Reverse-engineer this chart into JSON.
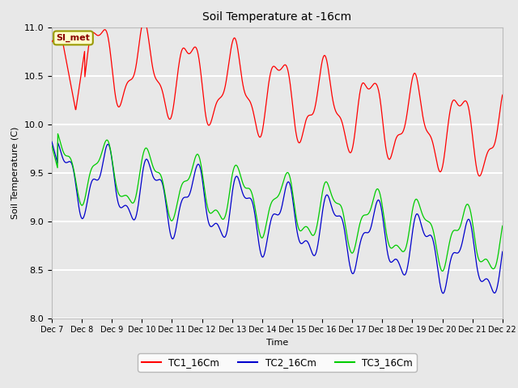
{
  "title": "Soil Temperature at -16cm",
  "xlabel": "Time",
  "ylabel": "Soil Temperature (C)",
  "ylim": [
    8.0,
    11.0
  ],
  "background_color": "#e8e8e8",
  "plot_bg_color": "#e8e8e8",
  "grid_color": "white",
  "annotation_text": "SI_met",
  "annotation_bg": "#ffffcc",
  "annotation_border": "#999900",
  "tick_labels": [
    "Dec 7",
    "Dec 8",
    "Dec 9",
    "Dec 10",
    "Dec 11",
    "Dec 12",
    "Dec 13",
    "Dec 14",
    "Dec 15",
    "Dec 16",
    "Dec 17",
    "Dec 18",
    "Dec 19",
    "Dec 20",
    "Dec 21",
    "Dec 22"
  ],
  "line_colors": {
    "TC1": "#ff0000",
    "TC2": "#0000cc",
    "TC3": "#00cc00"
  },
  "legend_labels": [
    "TC1_16Cm",
    "TC2_16Cm",
    "TC3_16Cm"
  ]
}
